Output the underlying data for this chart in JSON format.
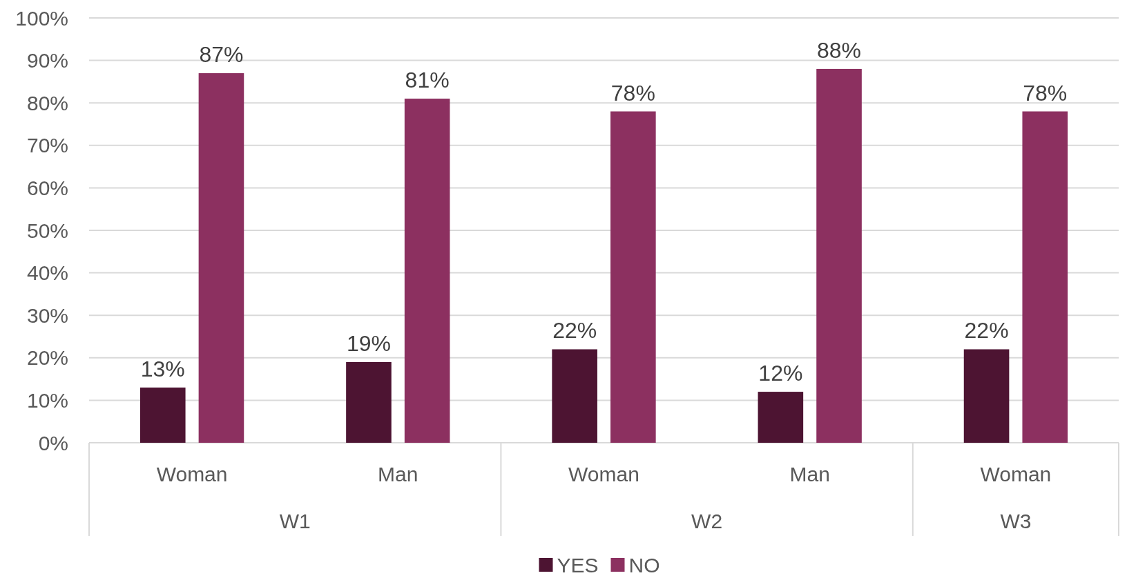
{
  "chart_data": {
    "type": "bar",
    "categories": [
      "Woman",
      "Man",
      "Woman",
      "Man",
      "Woman"
    ],
    "annotations": [
      "W1",
      "W2",
      "W3"
    ],
    "series": [
      {
        "name": "YES",
        "color": "#4d1432",
        "values": [
          13,
          19,
          22,
          12,
          22
        ],
        "value_labels": [
          "13%",
          "19%",
          "22%",
          "12%",
          "22%"
        ]
      },
      {
        "name": "NO",
        "color": "#8c3060",
        "values": [
          87,
          81,
          78,
          88,
          78
        ],
        "value_labels": [
          "87%",
          "81%",
          "78%",
          "88%",
          "78%"
        ]
      }
    ],
    "ylim": [
      0,
      100
    ],
    "yticks": [
      {
        "value": 0,
        "label": "0%"
      },
      {
        "value": 10,
        "label": "10%"
      },
      {
        "value": 20,
        "label": "20%"
      },
      {
        "value": 30,
        "label": "30%"
      },
      {
        "value": 40,
        "label": "40%"
      },
      {
        "value": 50,
        "label": "50%"
      },
      {
        "value": 60,
        "label": "60%"
      },
      {
        "value": 70,
        "label": "70%"
      },
      {
        "value": 80,
        "label": "80%"
      },
      {
        "value": 90,
        "label": "90%"
      },
      {
        "value": 100,
        "label": "100%"
      }
    ],
    "grid": "y",
    "legend": "bottom"
  }
}
